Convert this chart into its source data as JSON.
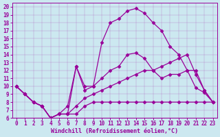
{
  "bg_color": "#cce8f0",
  "line_color": "#990099",
  "marker": "D",
  "markersize": 2.5,
  "linewidth": 0.9,
  "xlabel": "Windchill (Refroidissement éolien,°C)",
  "xlabel_fontsize": 6,
  "tick_fontsize": 5.5,
  "xlim": [
    -0.5,
    23.5
  ],
  "ylim": [
    6,
    20.5
  ],
  "xticks": [
    0,
    1,
    2,
    3,
    4,
    5,
    6,
    7,
    8,
    9,
    10,
    11,
    12,
    13,
    14,
    15,
    16,
    17,
    18,
    19,
    20,
    21,
    22,
    23
  ],
  "yticks": [
    6,
    7,
    8,
    9,
    10,
    11,
    12,
    13,
    14,
    15,
    16,
    17,
    18,
    19,
    20
  ],
  "series": [
    [
      10,
      9,
      8,
      7.5,
      6,
      6.5,
      6.5,
      6.5,
      7.5,
      8,
      8,
      8,
      8,
      8,
      8,
      8,
      8,
      8,
      8,
      8,
      8,
      8,
      8,
      8
    ],
    [
      10,
      9,
      8,
      7.5,
      6,
      6.5,
      6.5,
      7.5,
      8.5,
      9,
      9.5,
      10,
      10.5,
      11,
      11.5,
      12,
      12,
      12.5,
      13,
      13.5,
      14,
      11.5,
      9.5,
      8
    ],
    [
      10,
      9,
      8,
      7.5,
      6,
      6.5,
      7.5,
      12.5,
      9.5,
      10,
      11,
      12,
      12.5,
      14,
      14.2,
      13.5,
      12,
      11,
      11.5,
      11.5,
      12,
      12,
      9.5,
      8
    ],
    [
      10,
      9,
      8,
      7.5,
      6,
      6.5,
      6.5,
      12.5,
      10,
      10,
      15.5,
      18,
      18.5,
      19.5,
      19.8,
      19.2,
      18,
      17,
      15,
      14,
      12,
      9.8,
      9.2,
      8
    ]
  ]
}
